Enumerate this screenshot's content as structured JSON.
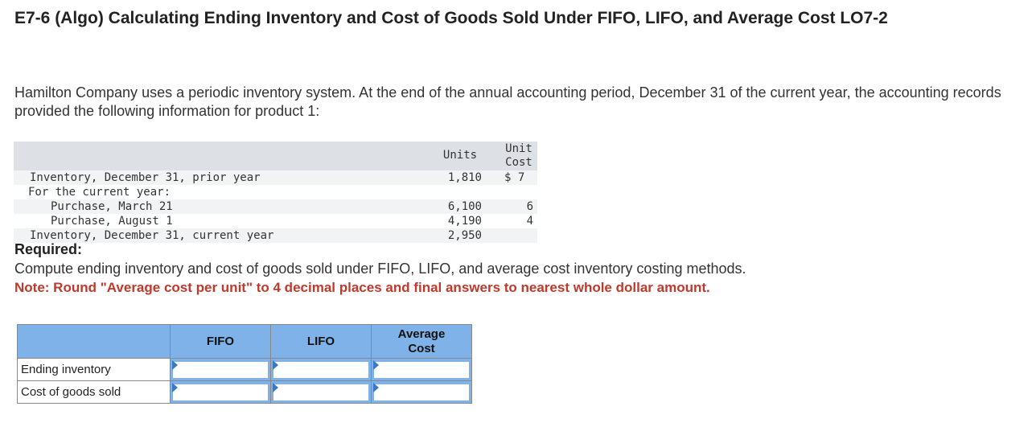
{
  "title": "E7-6 (Algo) Calculating Ending Inventory and Cost of Goods Sold Under FIFO, LIFO, and Average Cost LO7-2",
  "intro": "Hamilton Company uses a periodic inventory system. At the end of the annual accounting period, December 31 of the current year, the accounting records provided the following information for product 1:",
  "data_table": {
    "headers": {
      "units": "Units",
      "unit_cost_line1": "Unit",
      "unit_cost_line2": "Cost"
    },
    "rows": [
      {
        "label": "Inventory, December 31, prior year",
        "units": "1,810",
        "cost": "$ 7"
      },
      {
        "label": "For the current year:",
        "units": "",
        "cost": ""
      },
      {
        "label": "Purchase, March 21",
        "units": "6,100",
        "cost": "6"
      },
      {
        "label": "Purchase, August 1",
        "units": "4,190",
        "cost": "4"
      },
      {
        "label": "Inventory, December 31, current year",
        "units": "2,950",
        "cost": ""
      }
    ]
  },
  "required_label": "Required:",
  "compute_text": "Compute ending inventory and cost of goods sold under FIFO, LIFO, and average cost inventory costing methods.",
  "note_text": "Note: Round \"Average cost per unit\" to 4 decimal places and final answers to nearest whole dollar amount.",
  "answer_table": {
    "columns": [
      "FIFO",
      "LIFO",
      "Average Cost"
    ],
    "average_line1": "Average",
    "average_line2": "Cost",
    "rows": [
      {
        "label": "Ending inventory",
        "values": [
          "",
          "",
          ""
        ]
      },
      {
        "label": "Cost of goods sold",
        "values": [
          "",
          "",
          ""
        ]
      }
    ]
  },
  "colors": {
    "header_blue": "#7fb2e8",
    "note_red": "#c0392b",
    "table_head_gray": "#dde1e6"
  }
}
